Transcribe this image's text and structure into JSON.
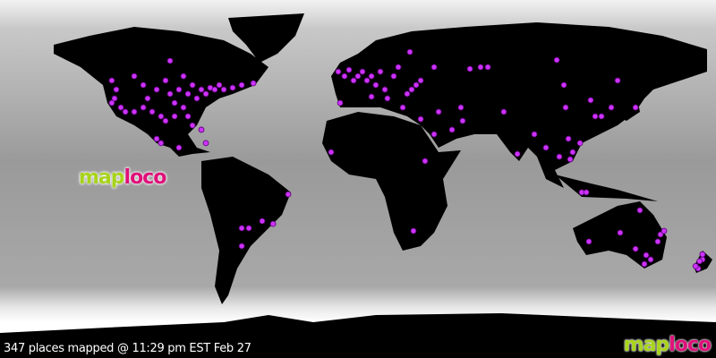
{
  "status_text": "347 places mapped @ 11:29 pm EST Feb 27",
  "logo": {
    "part1": "map",
    "part2": "loco"
  },
  "colors": {
    "marker": "#cc33ff",
    "land": "#000000",
    "logo_green": "#a8d41c",
    "logo_pink": "#e0107a"
  },
  "markers": [
    [
      -120.5,
      52.3
    ],
    [
      -118.2,
      47.7
    ],
    [
      -119.1,
      43.2
    ],
    [
      -115.9,
      38.6
    ],
    [
      -113.6,
      36.4
    ],
    [
      -109.1,
      54.5
    ],
    [
      -104.5,
      50
    ],
    [
      -102.3,
      43.2
    ],
    [
      -97.7,
      47.7
    ],
    [
      -93.2,
      52.3
    ],
    [
      -90.9,
      45.5
    ],
    [
      -88.6,
      40.9
    ],
    [
      -86.4,
      47.7
    ],
    [
      -84.1,
      38.6
    ],
    [
      -81.8,
      45.5
    ],
    [
      -79.5,
      50
    ],
    [
      -77.3,
      43.2
    ],
    [
      -75,
      47.7
    ],
    [
      -72.7,
      45.5
    ],
    [
      -70.5,
      48.6
    ],
    [
      -68.2,
      47.7
    ],
    [
      -65.9,
      50
    ],
    [
      -63.6,
      47.7
    ],
    [
      -59.1,
      48.6
    ],
    [
      -54.5,
      50
    ],
    [
      -48.6,
      50.9
    ],
    [
      -90.9,
      62.3
    ],
    [
      -95.5,
      34.1
    ],
    [
      -93.2,
      31.8
    ],
    [
      -88.6,
      34.1
    ],
    [
      -81.8,
      34.1
    ],
    [
      -79.5,
      29.5
    ],
    [
      -75,
      27.3
    ],
    [
      -72.7,
      20.5
    ],
    [
      -97.7,
      22.7
    ],
    [
      -95.5,
      20.5
    ],
    [
      -86.4,
      18.2
    ],
    [
      -120.5,
      40.9
    ],
    [
      -109.1,
      36.4
    ],
    [
      -84.1,
      54.5
    ],
    [
      -104.5,
      38.6
    ],
    [
      -100,
      36.4
    ],
    [
      -30.9,
      -5.5
    ],
    [
      -54.5,
      -22.7
    ],
    [
      -50.9,
      -22.7
    ],
    [
      -44.1,
      -19.1
    ],
    [
      -38.6,
      -20.5
    ],
    [
      -54.5,
      -31.8
    ],
    [
      -5.5,
      56.8
    ],
    [
      -2.3,
      54.5
    ],
    [
      0,
      57.7
    ],
    [
      2.3,
      52.3
    ],
    [
      4.5,
      54.5
    ],
    [
      6.8,
      56.8
    ],
    [
      9.1,
      52.3
    ],
    [
      11.4,
      54.5
    ],
    [
      13.6,
      50
    ],
    [
      15.9,
      56.8
    ],
    [
      18.2,
      47.7
    ],
    [
      22.7,
      54.5
    ],
    [
      25,
      59.1
    ],
    [
      29.5,
      45.5
    ],
    [
      31.8,
      47.7
    ],
    [
      34.1,
      50
    ],
    [
      36.4,
      52.3
    ],
    [
      43.2,
      59.1
    ],
    [
      30.9,
      66.8
    ],
    [
      -4.5,
      40.9
    ],
    [
      11.4,
      44.1
    ],
    [
      19.5,
      43.2
    ],
    [
      27.3,
      38.6
    ],
    [
      36.4,
      32.7
    ],
    [
      43.2,
      25
    ],
    [
      45.5,
      36.4
    ],
    [
      52.3,
      27.3
    ],
    [
      56.8,
      38.6
    ],
    [
      57.7,
      31.8
    ],
    [
      61.4,
      58.2
    ],
    [
      66.8,
      59.1
    ],
    [
      70.5,
      59.1
    ],
    [
      78.6,
      36.4
    ],
    [
      85.5,
      15
    ],
    [
      94.1,
      25
    ],
    [
      100,
      18.2
    ],
    [
      105.5,
      62.7
    ],
    [
      109.1,
      50
    ],
    [
      110,
      38.6
    ],
    [
      113.6,
      15.9
    ],
    [
      111.4,
      22.7
    ],
    [
      106.8,
      13.6
    ],
    [
      112.3,
      12.3
    ],
    [
      117.3,
      20.5
    ],
    [
      122.7,
      42.3
    ],
    [
      125,
      34.1
    ],
    [
      128.2,
      34.1
    ],
    [
      133.2,
      38.6
    ],
    [
      145.5,
      38.6
    ],
    [
      136.4,
      52.3
    ],
    [
      118.2,
      -4.5
    ],
    [
      120.5,
      -4.5
    ],
    [
      -9.1,
      15.9
    ],
    [
      38.6,
      11.4
    ],
    [
      32.7,
      -24.1
    ],
    [
      121.8,
      -29.5
    ],
    [
      137.7,
      -25
    ],
    [
      147.7,
      -13.6
    ],
    [
      145.5,
      -33.2
    ],
    [
      150.9,
      -36.4
    ],
    [
      153.2,
      -38.6
    ],
    [
      156.8,
      -29.5
    ],
    [
      158.2,
      -25.9
    ],
    [
      160,
      -24.1
    ],
    [
      150,
      -40.9
    ],
    [
      177.3,
      -43.2
    ],
    [
      179.5,
      -38.6
    ],
    [
      179.5,
      -36
    ],
    [
      178,
      -39.5
    ],
    [
      176,
      -42
    ]
  ]
}
